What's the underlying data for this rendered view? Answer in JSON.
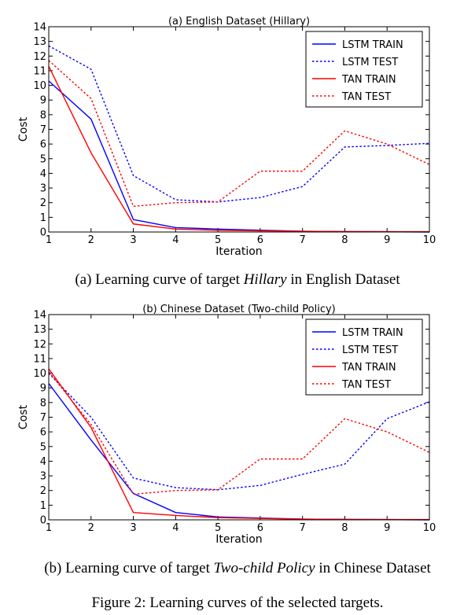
{
  "chart_data": [
    {
      "type": "line",
      "title": "(a) English Dataset (Hillary)",
      "xlabel": "Iteration",
      "ylabel": "Cost",
      "xlim": [
        1,
        10
      ],
      "ylim": [
        0,
        14
      ],
      "x": [
        1,
        2,
        3,
        4,
        5,
        6,
        7,
        8,
        9,
        10
      ],
      "xticks": [
        "1",
        "2",
        "3",
        "4",
        "5",
        "6",
        "7",
        "8",
        "9",
        "10"
      ],
      "yticks": [
        "0",
        "1",
        "2",
        "3",
        "4",
        "5",
        "6",
        "7",
        "8",
        "9",
        "10",
        "11",
        "12",
        "13",
        "14"
      ],
      "grid": false,
      "legend": "top-right",
      "series": [
        {
          "name": "LSTM TRAIN",
          "color": "#0000ff",
          "dash": "solid",
          "values": [
            10.3,
            7.7,
            0.85,
            0.3,
            0.2,
            0.12,
            0.05,
            0.03,
            0.02,
            0.0
          ]
        },
        {
          "name": "LSTM TEST",
          "color": "#0000ff",
          "dash": "dotted",
          "values": [
            12.7,
            11.1,
            3.85,
            2.2,
            2.05,
            2.35,
            3.1,
            5.8,
            5.9,
            6.05
          ]
        },
        {
          "name": "TAN TRAIN",
          "color": "#ff0000",
          "dash": "solid",
          "values": [
            11.3,
            5.4,
            0.55,
            0.2,
            0.12,
            0.08,
            0.05,
            0.03,
            0.02,
            0.02
          ]
        },
        {
          "name": "TAN TEST",
          "color": "#ff0000",
          "dash": "dotted",
          "values": [
            11.7,
            9.1,
            1.75,
            2.0,
            2.05,
            4.15,
            4.15,
            6.9,
            6.0,
            4.6
          ]
        }
      ]
    },
    {
      "type": "line",
      "title": "(b) Chinese Dataset (Two-child Policy)",
      "xlabel": "Iteration",
      "ylabel": "Cost",
      "xlim": [
        1,
        10
      ],
      "ylim": [
        0,
        14
      ],
      "x": [
        1,
        2,
        3,
        4,
        5,
        6,
        7,
        8,
        9,
        10
      ],
      "xticks": [
        "1",
        "2",
        "3",
        "4",
        "5",
        "6",
        "7",
        "8",
        "9",
        "10"
      ],
      "yticks": [
        "0",
        "1",
        "2",
        "3",
        "4",
        "5",
        "6",
        "7",
        "8",
        "9",
        "10",
        "11",
        "12",
        "13",
        "14"
      ],
      "grid": false,
      "legend": "top-right",
      "series": [
        {
          "name": "LSTM TRAIN",
          "color": "#0000ff",
          "dash": "solid",
          "values": [
            9.3,
            5.45,
            1.8,
            0.5,
            0.2,
            0.12,
            0.05,
            0.03,
            0.02,
            0.0
          ]
        },
        {
          "name": "LSTM TEST",
          "color": "#0000ff",
          "dash": "dotted",
          "values": [
            10.0,
            7.0,
            2.85,
            2.2,
            2.05,
            2.35,
            3.1,
            3.8,
            6.9,
            8.05
          ]
        },
        {
          "name": "TAN TRAIN",
          "color": "#ff0000",
          "dash": "solid",
          "values": [
            10.3,
            6.3,
            0.5,
            0.3,
            0.15,
            0.1,
            0.05,
            0.03,
            0.02,
            0.02
          ]
        },
        {
          "name": "TAN TEST",
          "color": "#ff0000",
          "dash": "dotted",
          "values": [
            10.1,
            6.5,
            1.75,
            2.0,
            2.05,
            4.15,
            4.15,
            6.9,
            6.0,
            4.6
          ]
        }
      ]
    }
  ],
  "captions": {
    "a": {
      "before": "(a) Learning curve of target ",
      "italic": "Hillary",
      "after": " in English Dataset"
    },
    "b": {
      "before": "(b) Learning curve of target ",
      "italic": "Two-child Policy",
      "after": " in Chinese Dataset"
    },
    "figure": "Figure 2: Learning curves of the selected targets."
  }
}
